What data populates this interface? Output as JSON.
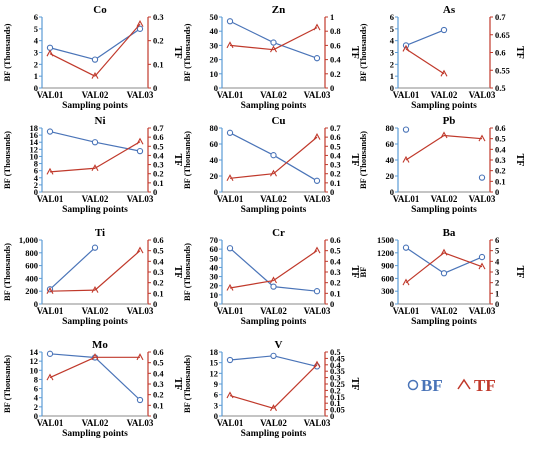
{
  "chart_data": [
    {
      "type": "line",
      "title": "Co",
      "categories": [
        "VAL01",
        "VAL02",
        "VAL03"
      ],
      "xlabel": "Sampling points",
      "ylabel_left": "BF (Thousands)",
      "ylim_left": [
        0,
        6
      ],
      "yticks_left": [
        "0",
        "1",
        "2",
        "3",
        "4",
        "5",
        "6"
      ],
      "ylabel_right": "TF",
      "ylim_right": [
        0,
        0.3
      ],
      "yticks_right": [
        "0",
        "0.1",
        "0.2",
        "0.3"
      ],
      "series": [
        {
          "name": "BF",
          "values": [
            3.4,
            2.4,
            5.0
          ]
        },
        {
          "name": "TF",
          "values": [
            0.145,
            0.05,
            0.27
          ]
        }
      ]
    },
    {
      "type": "line",
      "title": "Zn",
      "categories": [
        "VAL01",
        "VAL02",
        "VAL03"
      ],
      "xlabel": "Sampling points",
      "ylabel_left": "BF (Thousands)",
      "ylim_left": [
        0,
        50
      ],
      "yticks_left": [
        "0",
        "10",
        "20",
        "30",
        "40",
        "50"
      ],
      "ylabel_right": "TF",
      "ylim_right": [
        0,
        1
      ],
      "yticks_right": [
        "0",
        "0.2",
        "0.4",
        "0.6",
        "0.8",
        "1"
      ],
      "series": [
        {
          "name": "BF",
          "values": [
            47,
            32,
            21
          ]
        },
        {
          "name": "TF",
          "values": [
            0.6,
            0.54,
            0.85
          ]
        }
      ]
    },
    {
      "type": "line",
      "title": "As",
      "categories": [
        "VAL01",
        "VAL02",
        "VAL03"
      ],
      "xlabel": "Sampling points",
      "ylabel_left": "BF (Thousands)",
      "ylim_left": [
        0,
        6
      ],
      "yticks_left": [
        "0",
        "1",
        "2",
        "3",
        "4",
        "5",
        "6"
      ],
      "ylabel_right": "TF",
      "ylim_right": [
        0.5,
        0.7
      ],
      "yticks_right": [
        "0.5",
        "0.55",
        "0.6",
        "0.65",
        "0.7"
      ],
      "series": [
        {
          "name": "BF",
          "values": [
            3.6,
            4.9,
            null
          ]
        },
        {
          "name": "TF",
          "values": [
            0.61,
            0.54,
            null
          ]
        }
      ]
    },
    {
      "type": "line",
      "title": "Ni",
      "categories": [
        "VAL01",
        "VAL02",
        "VAL03"
      ],
      "xlabel": "Sampling points",
      "ylabel_left": "BF (Thousands)",
      "ylim_left": [
        0,
        18
      ],
      "yticks_left": [
        "0",
        "2",
        "4",
        "6",
        "8",
        "10",
        "12",
        "14",
        "16",
        "18"
      ],
      "ylabel_right": "TF",
      "ylim_right": [
        0,
        0.7
      ],
      "yticks_right": [
        "0",
        "0.1",
        "0.2",
        "0.3",
        "0.4",
        "0.5",
        "0.6",
        "0.7"
      ],
      "series": [
        {
          "name": "BF",
          "values": [
            17,
            14,
            11.5
          ]
        },
        {
          "name": "TF",
          "values": [
            0.22,
            0.26,
            0.55
          ]
        }
      ]
    },
    {
      "type": "line",
      "title": "Cu",
      "categories": [
        "VAL01",
        "VAL02",
        "VAL03"
      ],
      "xlabel": "Sampling points",
      "ylabel_left": "BF (Thousands)",
      "ylim_left": [
        0,
        80
      ],
      "yticks_left": [
        "0",
        "20",
        "40",
        "60",
        "80"
      ],
      "ylabel_right": "TF",
      "ylim_right": [
        0,
        0.7
      ],
      "yticks_right": [
        "0",
        "0.1",
        "0.2",
        "0.3",
        "0.4",
        "0.5",
        "0.6",
        "0.7"
      ],
      "series": [
        {
          "name": "BF",
          "values": [
            74,
            46,
            14
          ]
        },
        {
          "name": "TF",
          "values": [
            0.15,
            0.2,
            0.6
          ]
        }
      ]
    },
    {
      "type": "line",
      "title": "Pb",
      "categories": [
        "VAL01",
        "VAL02",
        "VAL03"
      ],
      "xlabel": "Sampling points",
      "ylabel_left": "BF (Thousands)",
      "ylim_left": [
        0,
        80
      ],
      "yticks_left": [
        "0",
        "20",
        "40",
        "60",
        "80"
      ],
      "ylabel_right": "TF",
      "ylim_right": [
        0,
        0.6
      ],
      "yticks_right": [
        "0",
        "0.1",
        "0.2",
        "0.3",
        "0.4",
        "0.5",
        "0.6"
      ],
      "series": [
        {
          "name": "BF",
          "values": [
            78,
            null,
            18
          ]
        },
        {
          "name": "TF",
          "values": [
            null,
            0.53,
            0.5
          ]
        },
        {
          "name": "BF",
          "values": [
            null,
            null,
            null
          ]
        }
      ],
      "tf_extra": {
        "category": "VAL01",
        "value": 0.3
      }
    },
    {
      "type": "line",
      "title": "Ti",
      "categories": [
        "VAL01",
        "VAL02",
        "VAL03"
      ],
      "xlabel": "Sampling points",
      "ylabel_left": "BF (Thousands)",
      "ylim_left": [
        0,
        1000
      ],
      "yticks_left": [
        "0",
        "200",
        "400",
        "600",
        "800",
        "1,000"
      ],
      "ylabel_right": "TF",
      "ylim_right": [
        0,
        0.6
      ],
      "yticks_right": [
        "0",
        "0.1",
        "0.2",
        "0.3",
        "0.4",
        "0.5",
        "0.6"
      ],
      "series": [
        {
          "name": "BF",
          "values": [
            230,
            880,
            null
          ]
        },
        {
          "name": "TF",
          "values": [
            0.12,
            0.13,
            0.5
          ]
        }
      ]
    },
    {
      "type": "line",
      "title": "Cr",
      "categories": [
        "VAL01",
        "VAL02",
        "VAL03"
      ],
      "xlabel": "Sampling points",
      "ylabel_left": "BF (Thousands)",
      "ylim_left": [
        0,
        70
      ],
      "yticks_left": [
        "0",
        "10",
        "20",
        "30",
        "40",
        "50",
        "60",
        "70"
      ],
      "ylabel_right": "TF",
      "ylim_right": [
        0,
        0.6
      ],
      "yticks_right": [
        "0",
        "0.1",
        "0.2",
        "0.3",
        "0.4",
        "0.5",
        "0.6"
      ],
      "series": [
        {
          "name": "BF",
          "values": [
            61,
            19,
            14
          ]
        },
        {
          "name": "TF",
          "values": [
            0.15,
            0.22,
            0.5
          ]
        }
      ]
    },
    {
      "type": "line",
      "title": "Ba",
      "categories": [
        "VAL01",
        "VAL02",
        "VAL03"
      ],
      "xlabel": "Sampling points",
      "ylabel_left": "BF",
      "ylim_left": [
        0,
        1500
      ],
      "yticks_left": [
        "0",
        "300",
        "600",
        "900",
        "1200",
        "1500"
      ],
      "ylabel_right": "TF",
      "ylim_right": [
        0,
        6
      ],
      "yticks_right": [
        "0",
        "1",
        "2",
        "3",
        "4",
        "5",
        "6"
      ],
      "series": [
        {
          "name": "BF",
          "values": [
            1320,
            720,
            1100
          ]
        },
        {
          "name": "TF",
          "values": [
            2,
            4.8,
            3.5
          ]
        }
      ]
    },
    {
      "type": "line",
      "title": "Mo",
      "categories": [
        "VAL01",
        "VAL02",
        "VAL03"
      ],
      "xlabel": "Sampling points",
      "ylabel_left": "BF (Thousands)",
      "ylim_left": [
        0,
        14
      ],
      "yticks_left": [
        "0",
        "2",
        "4",
        "6",
        "8",
        "10",
        "12",
        "14"
      ],
      "ylabel_right": "TF",
      "ylim_right": [
        0,
        0.6
      ],
      "yticks_right": [
        "0",
        "0.1",
        "0.2",
        "0.3",
        "0.4",
        "0.5",
        "0.6"
      ],
      "series": [
        {
          "name": "BF",
          "values": [
            13.6,
            12.8,
            3.5
          ]
        },
        {
          "name": "TF",
          "values": [
            0.36,
            0.55,
            0.55
          ]
        }
      ]
    },
    {
      "type": "line",
      "title": "V",
      "categories": [
        "VAL01",
        "VAL02",
        "VAL03"
      ],
      "xlabel": "Sampling points",
      "ylabel_left": "BF (Thousands)",
      "ylim_left": [
        0,
        20
      ],
      "yticks_left": [
        "0",
        "3",
        "6",
        "9",
        "12",
        "15",
        "18"
      ],
      "ylabel_right": "TF",
      "ylim_right": [
        0,
        0.5
      ],
      "yticks_right": [
        "0",
        "0.05",
        "0.1",
        "0.15",
        "0.2",
        "0.25",
        "0.3",
        "0.35",
        "0.4",
        "0.45",
        "0.5"
      ],
      "series": [
        {
          "name": "BF",
          "values": [
            17.5,
            18.8,
            15.5
          ]
        },
        {
          "name": "TF",
          "values": [
            0.16,
            0.06,
            0.4
          ]
        }
      ]
    }
  ],
  "legend": {
    "bf_label": "BF",
    "tf_label": "TF",
    "position": "bottom-right"
  },
  "colors": {
    "bf": "#4a74b8",
    "tf": "#c0392b",
    "axis_left": "#5b9bd5",
    "axis_right": "#c0392b",
    "text": "#000000"
  }
}
